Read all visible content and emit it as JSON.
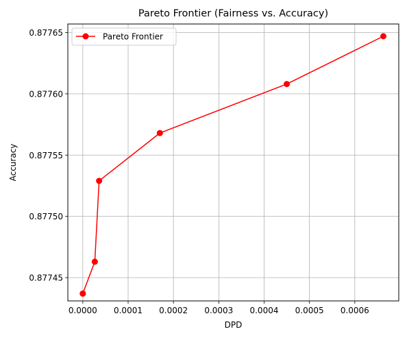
{
  "chart_data": {
    "type": "line",
    "title": "Pareto Frontier (Fairness vs. Accuracy)",
    "xlabel": "DPD",
    "ylabel": "Accuracy",
    "xlim": [
      -3.3e-05,
      0.000697
    ],
    "ylim": [
      0.877431,
      0.877657
    ],
    "x_ticks": [
      0.0,
      0.0001,
      0.0002,
      0.0003,
      0.0004,
      0.0005,
      0.0006
    ],
    "x_tick_labels": [
      "0.0000",
      "0.0001",
      "0.0002",
      "0.0003",
      "0.0004",
      "0.0005",
      "0.0006"
    ],
    "y_ticks": [
      0.87745,
      0.8775,
      0.87755,
      0.8776,
      0.87765
    ],
    "y_tick_labels": [
      "0.87745",
      "0.87750",
      "0.87755",
      "0.87760",
      "0.87765"
    ],
    "grid": true,
    "legend_position": "upper-left",
    "series": [
      {
        "name": "Pareto Frontier",
        "color": "#ff0000",
        "marker": "circle",
        "x": [
          0.0,
          0.0,
          2.65e-05,
          3.6e-05,
          0.00017,
          0.00045,
          0.000663
        ],
        "y": [
          0.877437,
          0.877437,
          0.877463,
          0.877529,
          0.877568,
          0.877608,
          0.877647
        ]
      }
    ]
  }
}
